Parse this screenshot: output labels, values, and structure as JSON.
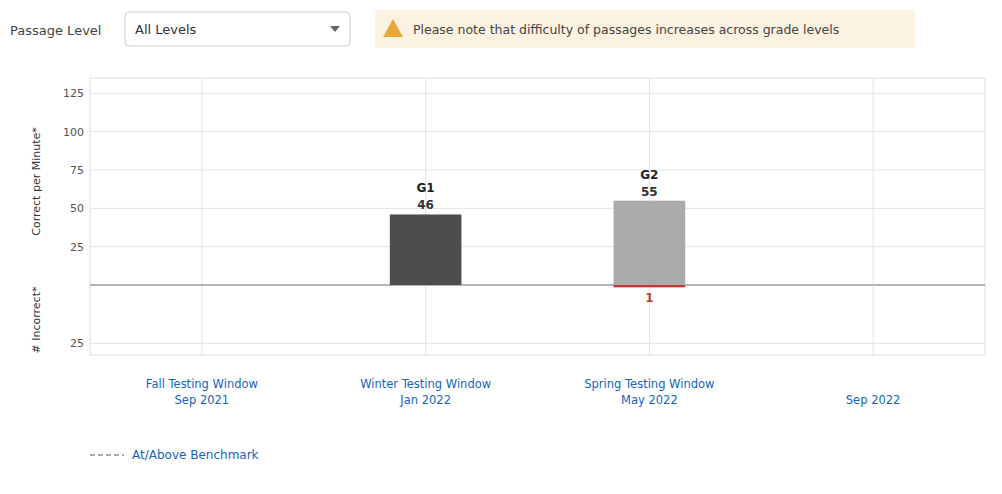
{
  "chart_data": [
    {
      "type": "bar",
      "series": [
        {
          "name": "G1",
          "color": "#4d4d4d",
          "values": [
            null,
            46,
            null,
            null
          ]
        },
        {
          "name": "G2",
          "color": "#aaaaaa",
          "values": [
            null,
            null,
            55,
            null
          ]
        }
      ],
      "stacked": true,
      "data_labels": true,
      "ylim": [
        0,
        135
      ],
      "yticks": [
        25,
        50,
        75,
        100,
        125
      ],
      "y_label": "Correct per Minute*",
      "grid": true,
      "tick_labels": "y",
      "annotations": [
        {
          "text": "Passage Level"
        },
        {
          "text": "All Levels"
        },
        {
          "text": "Please note that difficulty of passages increases across grade levels",
          "color": "#e8a838"
        },
        {
          "text": "At/Above Benchmark",
          "color": "#aaaaaa",
          "line_style": "dashed"
        }
      ]
    },
    {
      "type": "bar",
      "categories": [
        "Fall Testing Window\nSep 2021",
        "Winter Testing Window\nJan 2022",
        "Spring Testing Window\nMay 2022",
        "Sep 2022"
      ],
      "series": [
        {
          "color": "#c0392b",
          "values": [
            null,
            0,
            1,
            null
          ],
          "value_labels": [
            null,
            null,
            "1",
            null
          ]
        }
      ],
      "ylim": [
        30,
        0
      ],
      "yticks": [
        25
      ],
      "y_label": "# Incorrect*",
      "grid": true
    }
  ]
}
